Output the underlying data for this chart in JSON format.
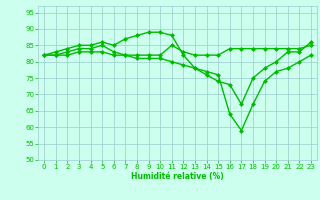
{
  "x": [
    0,
    1,
    2,
    3,
    4,
    5,
    6,
    7,
    8,
    9,
    10,
    11,
    12,
    13,
    14,
    15,
    16,
    17,
    18,
    19,
    20,
    21,
    22,
    23
  ],
  "line1": [
    82,
    82,
    83,
    84,
    84,
    85,
    83,
    82,
    82,
    82,
    82,
    85,
    83,
    82,
    82,
    82,
    84,
    84,
    84,
    84,
    84,
    84,
    84,
    85
  ],
  "line2": [
    82,
    83,
    84,
    85,
    85,
    86,
    85,
    87,
    88,
    89,
    89,
    88,
    82,
    78,
    76,
    74,
    73,
    67,
    75,
    78,
    80,
    83,
    83,
    86
  ],
  "line3": [
    82,
    82,
    82,
    83,
    83,
    83,
    82,
    82,
    81,
    81,
    81,
    80,
    79,
    78,
    77,
    76,
    64,
    59,
    67,
    74,
    77,
    78,
    80,
    82
  ],
  "xlabel": "Humidité relative (%)",
  "ylim": [
    50,
    97
  ],
  "xlim": [
    -0.5,
    23.5
  ],
  "yticks": [
    50,
    55,
    60,
    65,
    70,
    75,
    80,
    85,
    90,
    95
  ],
  "xticks": [
    0,
    1,
    2,
    3,
    4,
    5,
    6,
    7,
    8,
    9,
    10,
    11,
    12,
    13,
    14,
    15,
    16,
    17,
    18,
    19,
    20,
    21,
    22,
    23
  ],
  "line_color": "#00bb00",
  "bg_color": "#ccffee",
  "grid_color": "#99cccc",
  "marker": "D",
  "markersize": 2.0,
  "linewidth": 1.0
}
